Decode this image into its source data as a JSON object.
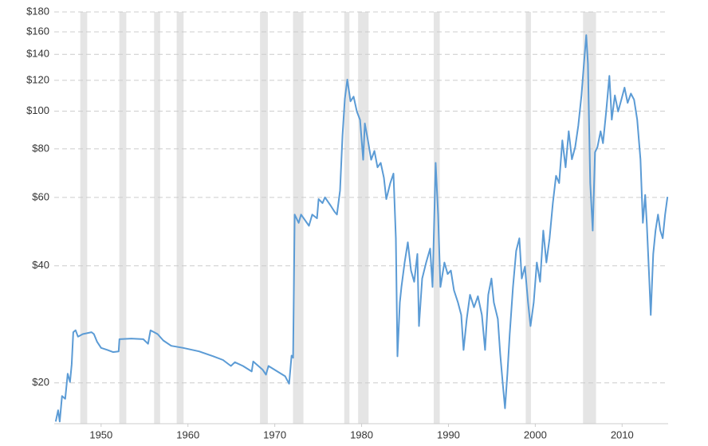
{
  "chart_data": {
    "type": "line",
    "color": "#5b9bd5",
    "log_scale": true,
    "grid": true,
    "ylim": [
      15.7,
      180
    ],
    "yticks": [
      {
        "value": 20,
        "label": "$20"
      },
      {
        "value": 40,
        "label": "$40"
      },
      {
        "value": 60,
        "label": "$60"
      },
      {
        "value": 80,
        "label": "$80"
      },
      {
        "value": 100,
        "label": "$100"
      },
      {
        "value": 120,
        "label": "$120"
      },
      {
        "value": 140,
        "label": "$140"
      },
      {
        "value": 160,
        "label": "$160"
      },
      {
        "value": 180,
        "label": "$180"
      }
    ],
    "xlim": [
      1944.6,
      2015.3
    ],
    "xticks": [
      1950,
      1960,
      1970,
      1980,
      1990,
      2000,
      2010
    ],
    "shaded_periods": [
      [
        1947.6,
        1948.4
      ],
      [
        1952.1,
        1952.9
      ],
      [
        1956.1,
        1956.8
      ],
      [
        1958.7,
        1959.5
      ],
      [
        1968.3,
        1969.2
      ],
      [
        1972.1,
        1973.3
      ],
      [
        1978.0,
        1978.6
      ],
      [
        1979.6,
        1980.8
      ],
      [
        1988.3,
        1989.0
      ],
      [
        1998.9,
        1999.5
      ],
      [
        2005.5,
        2007.0
      ]
    ],
    "x": [
      1944.77,
      1945.05,
      1945.23,
      1945.5,
      1945.87,
      1946.15,
      1946.42,
      1946.61,
      1946.79,
      1947.06,
      1947.34,
      1947.89,
      1948.9,
      1949.17,
      1949.54,
      1950.0,
      1950.73,
      1951.38,
      1952.02,
      1952.11,
      1953.49,
      1954.86,
      1955.41,
      1955.69,
      1956.51,
      1957.16,
      1958.07,
      1959.45,
      1961.28,
      1962.94,
      1964.04,
      1964.95,
      1965.41,
      1966.33,
      1967.34,
      1967.52,
      1968.62,
      1968.99,
      1969.27,
      1970.0,
      1971.19,
      1971.65,
      1971.93,
      1972.11,
      1972.29,
      1972.75,
      1973.03,
      1973.94,
      1974.31,
      1974.86,
      1975.05,
      1975.5,
      1975.78,
      1976.42,
      1976.88,
      1977.16,
      1977.52,
      1977.8,
      1978.07,
      1978.35,
      1978.72,
      1979.08,
      1979.45,
      1979.82,
      1980.18,
      1980.37,
      1980.73,
      1981.1,
      1981.47,
      1981.83,
      1982.2,
      1982.57,
      1982.84,
      1983.3,
      1983.67,
      1983.94,
      1984.13,
      1984.4,
      1984.59,
      1984.95,
      1985.32,
      1985.69,
      1986.06,
      1986.42,
      1986.61,
      1986.97,
      1987.43,
      1987.89,
      1988.17,
      1988.53,
      1988.81,
      1989.08,
      1989.54,
      1989.91,
      1990.28,
      1990.64,
      1991.1,
      1991.47,
      1991.74,
      1992.11,
      1992.48,
      1992.94,
      1993.39,
      1993.85,
      1994.22,
      1994.59,
      1994.95,
      1995.23,
      1995.69,
      1995.96,
      1996.24,
      1996.51,
      1996.79,
      1997.06,
      1997.43,
      1997.8,
      1998.17,
      1998.44,
      1998.81,
      1999.17,
      1999.45,
      1999.82,
      2000.18,
      2000.55,
      2000.92,
      2001.28,
      2001.65,
      2002.02,
      2002.39,
      2002.75,
      2003.12,
      2003.49,
      2003.85,
      2004.22,
      2004.59,
      2004.95,
      2005.32,
      2005.6,
      2005.87,
      2006.06,
      2006.33,
      2006.61,
      2006.88,
      2007.16,
      2007.52,
      2007.8,
      2008.17,
      2008.53,
      2008.81,
      2009.17,
      2009.54,
      2009.91,
      2010.28,
      2010.64,
      2011.01,
      2011.38,
      2011.74,
      2012.11,
      2012.39,
      2012.66,
      2012.84,
      2013.12,
      2013.3,
      2013.58,
      2013.85,
      2014.13,
      2014.4,
      2014.68,
      2014.95,
      2015.23
    ],
    "values": [
      15.9,
      17.0,
      15.9,
      18.5,
      18.2,
      21.1,
      20.1,
      22.3,
      27.0,
      27.3,
      26.3,
      26.7,
      27.0,
      26.7,
      25.5,
      24.6,
      24.3,
      24.0,
      24.1,
      25.9,
      26.0,
      25.9,
      25.2,
      27.3,
      26.7,
      25.7,
      24.9,
      24.6,
      24.1,
      23.4,
      22.9,
      22.1,
      22.6,
      22.1,
      21.4,
      22.7,
      21.6,
      21.0,
      22.1,
      21.6,
      20.8,
      19.9,
      23.5,
      23.2,
      54.2,
      51.6,
      54.2,
      50.7,
      54.2,
      53.0,
      59.4,
      58.0,
      60.0,
      57.2,
      55.1,
      54.2,
      62.5,
      86.7,
      107.5,
      120.6,
      106.0,
      109.0,
      99.8,
      95.0,
      75.0,
      93.0,
      84.0,
      75.0,
      79.0,
      71.7,
      73.6,
      67.4,
      59.4,
      65.3,
      69.1,
      47.1,
      23.4,
      32.2,
      35.3,
      40.8,
      46.0,
      38.9,
      36.4,
      42.9,
      28.0,
      37.1,
      40.8,
      44.3,
      35.3,
      73.6,
      54.2,
      35.3,
      40.8,
      38.1,
      38.9,
      34.6,
      32.2,
      29.9,
      24.3,
      29.2,
      33.7,
      31.3,
      33.4,
      29.9,
      24.3,
      33.7,
      37.1,
      32.2,
      29.2,
      23.7,
      20.1,
      17.2,
      21.1,
      26.7,
      35.3,
      43.7,
      47.1,
      37.1,
      39.8,
      32.2,
      28.0,
      32.2,
      40.8,
      36.4,
      49.3,
      40.8,
      47.1,
      58.0,
      68.2,
      65.3,
      84.1,
      71.7,
      88.8,
      75.2,
      80.8,
      91.7,
      109.8,
      132.6,
      156.9,
      132.6,
      65.3,
      49.3,
      78.4,
      80.8,
      88.8,
      82.7,
      99.8,
      123.3,
      95.1,
      109.8,
      99.8,
      107.0,
      115.0,
      105.0,
      111.0,
      107.0,
      95.1,
      75.2,
      51.6,
      60.9,
      51.6,
      37.1,
      29.9,
      42.9,
      49.3,
      54.2,
      49.3,
      47.1,
      54.2,
      60.2
    ]
  }
}
